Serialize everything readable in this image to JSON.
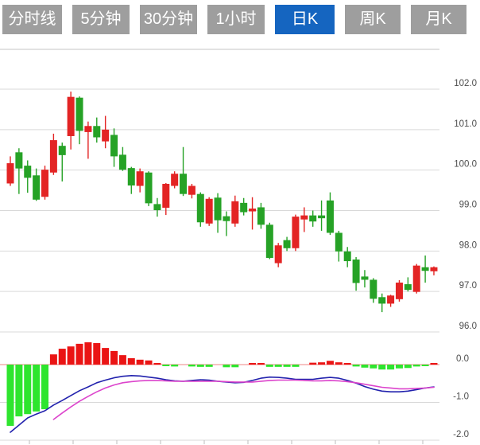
{
  "tabs": [
    {
      "id": "minute-line",
      "label": "分时线",
      "active": false
    },
    {
      "id": "5min",
      "label": "5分钟",
      "active": false
    },
    {
      "id": "30min",
      "label": "30分钟",
      "active": false
    },
    {
      "id": "1hour",
      "label": "1小时",
      "active": false
    },
    {
      "id": "daily-k",
      "label": "日K",
      "active": true
    },
    {
      "id": "weekly-k",
      "label": "周K",
      "active": false
    },
    {
      "id": "monthly-k",
      "label": "月K",
      "active": false
    }
  ],
  "colors": {
    "tab_bg": "#9e9e9e",
    "tab_active_bg": "#1565c0",
    "tab_text": "#ffffff",
    "candle_up": "#e32424",
    "candle_down": "#26a226",
    "macd_up": "#ea1414",
    "macd_down": "#2ee52e",
    "dif_line": "#2121ad",
    "dea_line": "#dc44cc",
    "zero_line": "#ef8585",
    "grid": "#d9d9d9",
    "chart_border": "#c4c4c4",
    "axis_text": "#4d4d4d"
  },
  "chart_data": {
    "type": "candlestick",
    "selected_period": "日K",
    "grid": true,
    "legend": "none",
    "price_axis": {
      "side": "right",
      "ticks": [
        102,
        101,
        100,
        99,
        98,
        97,
        96
      ],
      "tick_labels": [
        "102.0",
        "101.0",
        "100.0",
        "99.0",
        "98.0",
        "97.0",
        "96.0"
      ]
    },
    "macd_axis": {
      "side": "right",
      "ticks": [
        0,
        -1,
        -2
      ],
      "tick_labels": [
        "0.0",
        "-1.0",
        "-2.0"
      ]
    },
    "candles_ohlc": [
      [
        99.67,
        100.34,
        99.61,
        100.17
      ],
      [
        100.44,
        100.54,
        99.41,
        100.04
      ],
      [
        100.11,
        100.24,
        99.44,
        99.81
      ],
      [
        99.87,
        100.04,
        99.24,
        99.27
      ],
      [
        99.34,
        100.11,
        99.27,
        100.01
      ],
      [
        99.94,
        100.9,
        99.88,
        100.74
      ],
      [
        100.6,
        100.68,
        99.72,
        100.37
      ],
      [
        100.84,
        101.94,
        100.51,
        101.81
      ],
      [
        101.79,
        101.82,
        100.64,
        100.97
      ],
      [
        100.94,
        101.2,
        100.28,
        101.09
      ],
      [
        101.09,
        101.3,
        100.68,
        100.81
      ],
      [
        100.71,
        101.34,
        100.54,
        101.0
      ],
      [
        100.87,
        101.03,
        100.08,
        100.34
      ],
      [
        100.38,
        100.57,
        99.98,
        100.01
      ],
      [
        100.05,
        100.08,
        99.41,
        99.62
      ],
      [
        99.61,
        100.04,
        99.45,
        99.97
      ],
      [
        99.94,
        99.97,
        99.11,
        99.18
      ],
      [
        99.16,
        99.31,
        98.85,
        99.01
      ],
      [
        99.07,
        99.68,
        98.89,
        99.66
      ],
      [
        99.61,
        99.97,
        99.55,
        99.91
      ],
      [
        99.91,
        100.57,
        99.36,
        99.41
      ],
      [
        99.39,
        99.66,
        99.3,
        99.61
      ],
      [
        99.41,
        99.45,
        98.6,
        98.71
      ],
      [
        98.68,
        99.33,
        98.62,
        99.29
      ],
      [
        99.32,
        99.43,
        98.45,
        98.76
      ],
      [
        98.86,
        98.98,
        98.37,
        98.74
      ],
      [
        98.68,
        99.37,
        98.6,
        99.23
      ],
      [
        99.19,
        99.31,
        98.88,
        98.96
      ],
      [
        98.98,
        99.33,
        98.53,
        99.05
      ],
      [
        99.08,
        99.19,
        98.55,
        98.65
      ],
      [
        98.65,
        98.7,
        97.8,
        97.83
      ],
      [
        97.7,
        98.2,
        97.6,
        98.14
      ],
      [
        98.27,
        98.35,
        98.0,
        98.07
      ],
      [
        98.07,
        98.9,
        98.0,
        98.85
      ],
      [
        98.78,
        99.08,
        98.47,
        98.88
      ],
      [
        98.88,
        99.0,
        98.6,
        98.73
      ],
      [
        98.88,
        99.25,
        98.5,
        98.81
      ],
      [
        99.25,
        99.45,
        98.4,
        98.45
      ],
      [
        98.45,
        98.5,
        97.74,
        97.99
      ],
      [
        97.99,
        98.1,
        97.6,
        97.75
      ],
      [
        97.79,
        97.85,
        97.02,
        97.21
      ],
      [
        97.37,
        97.53,
        97.1,
        97.29
      ],
      [
        97.29,
        97.33,
        96.72,
        96.82
      ],
      [
        96.86,
        96.95,
        96.49,
        96.7
      ],
      [
        96.7,
        96.92,
        96.62,
        96.9
      ],
      [
        96.81,
        97.28,
        96.75,
        97.22
      ],
      [
        97.18,
        97.35,
        97.0,
        97.04
      ],
      [
        96.99,
        97.68,
        96.95,
        97.64
      ],
      [
        97.6,
        97.89,
        97.22,
        97.51
      ],
      [
        97.5,
        97.62,
        97.4,
        97.6
      ]
    ],
    "macd": {
      "histogram": [
        -1.62,
        -1.37,
        -1.31,
        -1.24,
        -1.18,
        0.27,
        0.42,
        0.48,
        0.55,
        0.59,
        0.57,
        0.44,
        0.36,
        0.25,
        0.17,
        0.13,
        0.11,
        0.04,
        -0.04,
        -0.05,
        0,
        -0.05,
        -0.06,
        -0.06,
        0,
        -0.07,
        -0.07,
        0,
        0.03,
        0.04,
        -0.06,
        -0.06,
        -0.06,
        -0.06,
        0,
        0.05,
        0.06,
        0.1,
        0.06,
        0.03,
        -0.05,
        -0.08,
        -0.1,
        -0.13,
        -0.13,
        -0.1,
        -0.09,
        -0.05,
        -0.03,
        0.04
      ],
      "dif": [
        -1.79,
        -1.6,
        -1.41,
        -1.31,
        -1.22,
        -1.07,
        -0.95,
        -0.82,
        -0.69,
        -0.59,
        -0.48,
        -0.41,
        -0.35,
        -0.31,
        -0.29,
        -0.3,
        -0.33,
        -0.36,
        -0.4,
        -0.43,
        -0.44,
        -0.42,
        -0.4,
        -0.41,
        -0.44,
        -0.46,
        -0.48,
        -0.47,
        -0.42,
        -0.36,
        -0.33,
        -0.34,
        -0.36,
        -0.39,
        -0.39,
        -0.39,
        -0.36,
        -0.34,
        -0.36,
        -0.42,
        -0.49,
        -0.58,
        -0.65,
        -0.7,
        -0.72,
        -0.72,
        -0.7,
        -0.66,
        -0.62,
        -0.59
      ],
      "dea": [
        null,
        null,
        null,
        null,
        null,
        -1.45,
        -1.28,
        -1.12,
        -0.97,
        -0.84,
        -0.72,
        -0.62,
        -0.54,
        -0.48,
        -0.45,
        -0.43,
        -0.42,
        -0.42,
        -0.43,
        -0.44,
        -0.44,
        -0.44,
        -0.44,
        -0.44,
        -0.44,
        -0.45,
        -0.46,
        -0.46,
        -0.46,
        -0.44,
        -0.42,
        -0.41,
        -0.41,
        -0.41,
        -0.42,
        -0.43,
        -0.43,
        -0.42,
        -0.43,
        -0.45,
        -0.48,
        -0.52,
        -0.56,
        -0.6,
        -0.62,
        -0.64,
        -0.64,
        -0.63,
        -0.62,
        -0.6
      ]
    }
  }
}
